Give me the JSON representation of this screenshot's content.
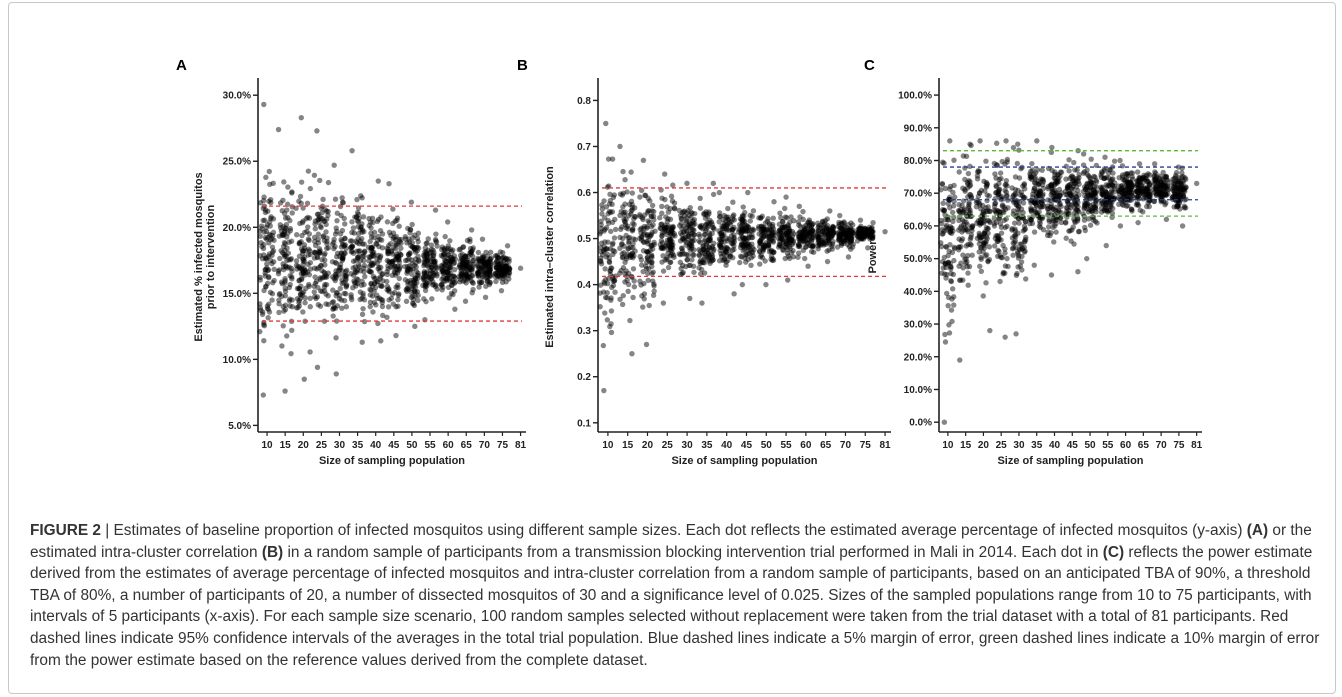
{
  "figure": {
    "caption_label": "FIGURE 2",
    "caption_separator": " | ",
    "caption_parts": [
      {
        "text": "Estimates of baseline proportion of infected mosquitos using different sample sizes. Each dot reflects the estimated average percentage of infected mosquitos (y-axis) ",
        "bold": false
      },
      {
        "text": "(A)",
        "bold": true
      },
      {
        "text": " or the estimated intra-cluster correlation ",
        "bold": false
      },
      {
        "text": "(B)",
        "bold": true
      },
      {
        "text": " in a random sample of participants from a transmission blocking intervention trial performed in Mali in 2014. Each dot in ",
        "bold": false
      },
      {
        "text": "(C)",
        "bold": true
      },
      {
        "text": " reflects the power estimate derived from the estimates of average percentage of infected mosquitos and intra-cluster correlation from a random sample of participants, based on an anticipated TBA of 90%, a threshold TBA of 80%, a number of participants of 20, a number of dissected mosquitos of 30 and a significance level of 0.025. Sizes of the sampled populations range from 10 to 75 participants, with intervals of 5 participants (x-axis). For each sample size scenario, 100 random samples selected without replacement were taken from the trial dataset with a total of 81 participants. Red dashed lines indicate 95% confidence intervals of the averages in the total trial population. Blue dashed lines indicate a 5% margin of error, green dashed lines indicate a 10% margin of error from the power estimate based on the reference values derived from the complete dataset.",
        "bold": false
      }
    ]
  },
  "chart_data": [
    {
      "type": "scatter",
      "panel_label": "A",
      "xlabel": "Size of sampling population",
      "ylabel_lines": [
        "Estimated % infected mosquitos",
        "prior to intervention"
      ],
      "x_categories": [
        "10",
        "15",
        "20",
        "25",
        "30",
        "35",
        "40",
        "45",
        "50",
        "55",
        "60",
        "65",
        "70",
        "75",
        "81"
      ],
      "y_ticks": [
        "5.0%",
        "10.0%",
        "15.0%",
        "20.0%",
        "25.0%",
        "30.0%"
      ],
      "ylim": [
        4.5,
        31
      ],
      "center": 16.9,
      "hlines": [
        {
          "value": 21.6,
          "color": "#e0393e"
        },
        {
          "value": 12.9,
          "color": "#e0393e"
        }
      ],
      "ranges": [
        [
          7.3,
          29.3
        ],
        [
          7.6,
          27.4
        ],
        [
          8.5,
          28.3
        ],
        [
          9.4,
          27.3
        ],
        [
          8.9,
          24.7
        ],
        [
          11.3,
          25.8
        ],
        [
          11.4,
          23.5
        ],
        [
          11.8,
          23.3
        ],
        [
          12.5,
          21.9
        ],
        [
          13.0,
          21.3
        ],
        [
          13.8,
          20.4
        ],
        [
          14.4,
          19.8
        ],
        [
          14.7,
          19.1
        ],
        [
          15.2,
          18.6
        ],
        [
          16.9,
          16.9
        ]
      ],
      "n_per_category": 100,
      "seed": 11
    },
    {
      "type": "scatter",
      "panel_label": "B",
      "xlabel": "Size of sampling population",
      "ylabel_lines": [
        "Estimated intra–cluster correlation"
      ],
      "x_categories": [
        "10",
        "15",
        "20",
        "25",
        "30",
        "35",
        "40",
        "45",
        "50",
        "55",
        "60",
        "65",
        "70",
        "75",
        "81"
      ],
      "y_ticks": [
        "0.1",
        "0.2",
        "0.3",
        "0.4",
        "0.5",
        "0.6",
        "0.7",
        "0.8"
      ],
      "ylim": [
        0.08,
        0.84
      ],
      "center": 0.515,
      "hlines": [
        {
          "value": 0.61,
          "color": "#e0393e"
        },
        {
          "value": 0.418,
          "color": "#e0393e"
        }
      ],
      "ranges": [
        [
          0.17,
          0.75
        ],
        [
          0.25,
          0.7
        ],
        [
          0.27,
          0.67
        ],
        [
          0.36,
          0.64
        ],
        [
          0.37,
          0.62
        ],
        [
          0.36,
          0.62
        ],
        [
          0.38,
          0.6
        ],
        [
          0.4,
          0.6
        ],
        [
          0.4,
          0.58
        ],
        [
          0.41,
          0.59
        ],
        [
          0.44,
          0.57
        ],
        [
          0.45,
          0.56
        ],
        [
          0.46,
          0.55
        ],
        [
          0.48,
          0.54
        ],
        [
          0.515,
          0.515
        ]
      ],
      "n_per_category": 100,
      "seed": 23
    },
    {
      "type": "scatter",
      "panel_label": "C",
      "xlabel": "Size of sampling population",
      "ylabel_lines": [
        "Power"
      ],
      "x_categories": [
        "10",
        "15",
        "20",
        "25",
        "30",
        "35",
        "40",
        "45",
        "50",
        "55",
        "60",
        "65",
        "70",
        "75",
        "81"
      ],
      "y_ticks": [
        "0.0%",
        "10.0%",
        "20.0%",
        "30.0%",
        "40.0%",
        "50.0%",
        "60.0%",
        "70.0%",
        "80.0%",
        "90.0%",
        "100.0%"
      ],
      "ylim": [
        -3,
        104
      ],
      "center": 73.0,
      "hlines": [
        {
          "value": 83.0,
          "color": "#5fb83a"
        },
        {
          "value": 78.0,
          "color": "#2f3a8f"
        },
        {
          "value": 68.0,
          "color": "#2f3a8f"
        },
        {
          "value": 63.0,
          "color": "#5fb83a"
        }
      ],
      "ranges": [
        [
          0,
          86
        ],
        [
          19,
          85
        ],
        [
          28,
          86
        ],
        [
          26,
          86
        ],
        [
          27,
          85
        ],
        [
          48,
          86
        ],
        [
          45,
          84
        ],
        [
          46,
          83
        ],
        [
          50,
          82
        ],
        [
          54,
          81
        ],
        [
          60,
          80
        ],
        [
          61,
          79
        ],
        [
          62,
          79
        ],
        [
          60,
          78
        ],
        [
          73,
          73
        ]
      ],
      "n_per_category": 100,
      "seed": 37
    }
  ]
}
